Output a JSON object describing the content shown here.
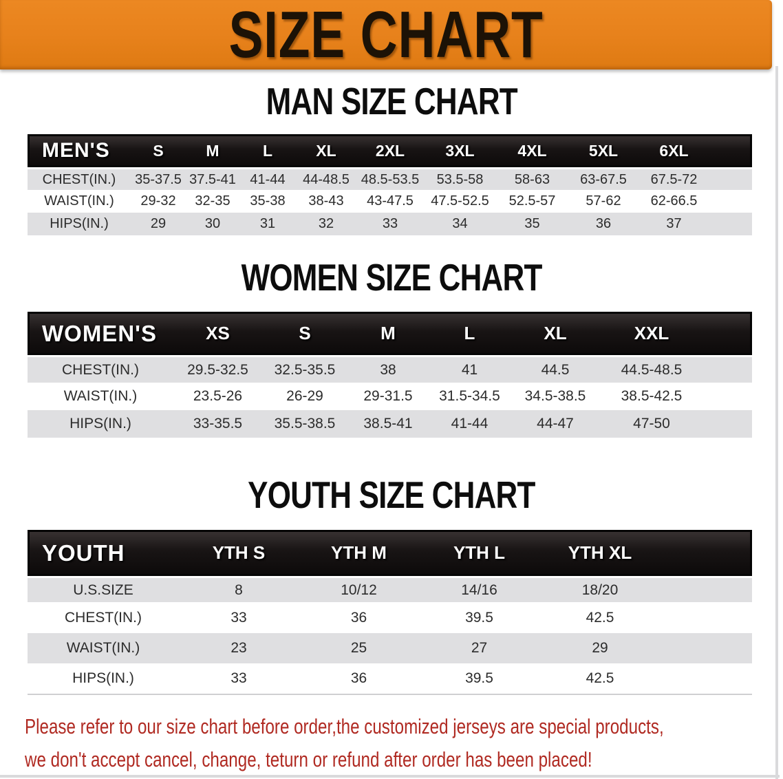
{
  "banner": {
    "title": "SIZE CHART",
    "bg_color": "#E7811B",
    "text_color": "#1C1206"
  },
  "tables": [
    {
      "id": "men",
      "title": "MAN SIZE CHART",
      "header": {
        "label": "MEN'S",
        "sizes": [
          "S",
          "M",
          "L",
          "XL",
          "2XL",
          "3XL",
          "4XL",
          "5XL",
          "6XL"
        ]
      },
      "rows": [
        {
          "label": "CHEST(IN.)",
          "values": [
            "35-37.5",
            "37.5-41",
            "41-44",
            "44-48.5",
            "48.5-53.5",
            "53.5-58",
            "58-63",
            "63-67.5",
            "67.5-72"
          ]
        },
        {
          "label": "WAIST(IN.)",
          "values": [
            "29-32",
            "32-35",
            "35-38",
            "38-43",
            "43-47.5",
            "47.5-52.5",
            "52.5-57",
            "57-62",
            "62-66.5"
          ]
        },
        {
          "label": "HIPS(IN.)",
          "values": [
            "29",
            "30",
            "31",
            "32",
            "33",
            "34",
            "35",
            "36",
            "37"
          ]
        }
      ]
    },
    {
      "id": "women",
      "title": "WOMEN SIZE CHART",
      "header": {
        "label": "WOMEN'S",
        "sizes": [
          "XS",
          "S",
          "M",
          "L",
          "XL",
          "XXL"
        ]
      },
      "rows": [
        {
          "label": "CHEST(IN.)",
          "values": [
            "29.5-32.5",
            "32.5-35.5",
            "38",
            "41",
            "44.5",
            "44.5-48.5"
          ]
        },
        {
          "label": "WAIST(IN.)",
          "values": [
            "23.5-26",
            "26-29",
            "29-31.5",
            "31.5-34.5",
            "34.5-38.5",
            "38.5-42.5"
          ]
        },
        {
          "label": "HIPS(IN.)",
          "values": [
            "33-35.5",
            "35.5-38.5",
            "38.5-41",
            "41-44",
            "44-47",
            "47-50"
          ]
        }
      ]
    },
    {
      "id": "youth",
      "title": "YOUTH SIZE CHART",
      "header": {
        "label": "YOUTH",
        "sizes": [
          "YTH S",
          "YTH M",
          "YTH L",
          "YTH XL"
        ]
      },
      "rows": [
        {
          "label": "U.S.SIZE",
          "values": [
            "8",
            "10/12",
            "14/16",
            "18/20"
          ]
        },
        {
          "label": "CHEST(IN.)",
          "values": [
            "33",
            "36",
            "39.5",
            "42.5"
          ]
        },
        {
          "label": "WAIST(IN.)",
          "values": [
            "23",
            "25",
            "27",
            "29"
          ]
        },
        {
          "label": "HIPS(IN.)",
          "values": [
            "33",
            "36",
            "39.5",
            "42.5"
          ]
        }
      ]
    }
  ],
  "disclaimer": {
    "line1": "Please refer to our size chart before order,the customized jerseys are special products,",
    "line2": "we don't accept cancel, change, teturn or refund after order has been placed!",
    "color": "#B02A22"
  },
  "row_colors": {
    "striped": "#DFDFE1",
    "plain": "#FFFFFF",
    "header": "#171313"
  }
}
